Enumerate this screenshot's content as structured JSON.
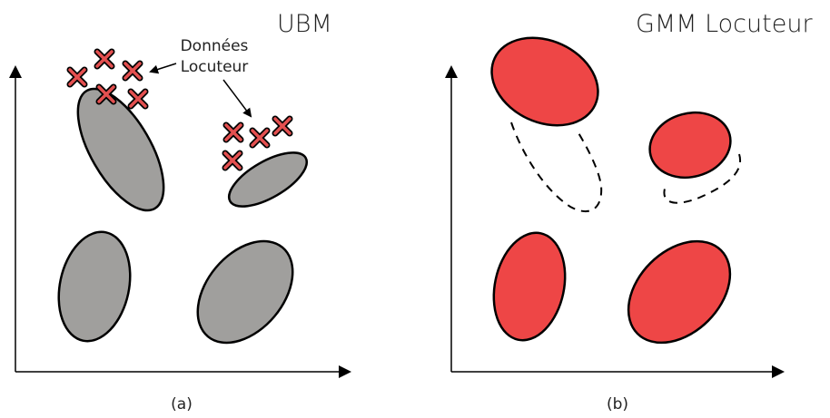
{
  "panels": [
    {
      "title": "UBM",
      "caption": "(a)",
      "annotation": [
        "Données",
        "Locuteur"
      ]
    },
    {
      "title": "GMM Locuteur",
      "caption": "(b)"
    }
  ]
}
